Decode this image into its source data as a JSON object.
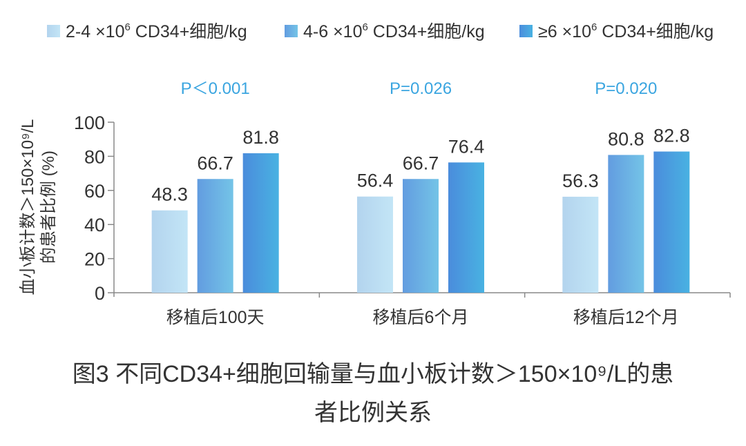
{
  "chart_data": {
    "type": "bar",
    "categories": [
      "移植后100天",
      "移植后6个月",
      "移植后12个月"
    ],
    "series": [
      {
        "name": "2-4 ×10⁶ CD34+细胞/kg",
        "values": [
          48.3,
          56.4,
          56.3
        ],
        "colors": [
          "#b3d4ee",
          "#c3e5f6"
        ]
      },
      {
        "name": "4-6 ×10⁶ CD34+细胞/kg",
        "values": [
          66.7,
          66.7,
          80.8
        ],
        "colors": [
          "#629ce0",
          "#74c4e7"
        ]
      },
      {
        "name": "≥6 ×10⁶ CD34+细胞/kg",
        "values": [
          81.8,
          76.4,
          82.8
        ],
        "colors": [
          "#4a8cdc",
          "#49b2e2"
        ]
      }
    ],
    "data_labels": [
      [
        "48.3",
        "56.4",
        "56.3"
      ],
      [
        "66.7",
        "66.7",
        "80.8"
      ],
      [
        "81.8",
        "76.4",
        "82.8"
      ]
    ],
    "annotations": [
      "P＜0.001",
      "P=0.026",
      "P=0.020"
    ],
    "annotation_color": "#3aa5e0",
    "ylabel_line1": "血小板计数＞150×10⁹/L",
    "ylabel_line2": "的患者比例 (%)",
    "xlabel": "",
    "ylim": [
      0,
      100
    ],
    "yticks": [
      "0",
      "20",
      "40",
      "60",
      "80",
      "100"
    ],
    "grid": false,
    "legend_position": "top"
  },
  "caption": {
    "line1": "图3 不同CD34+细胞回输量与血小板计数＞150×10⁹/L的患",
    "line2": "者比例关系"
  }
}
